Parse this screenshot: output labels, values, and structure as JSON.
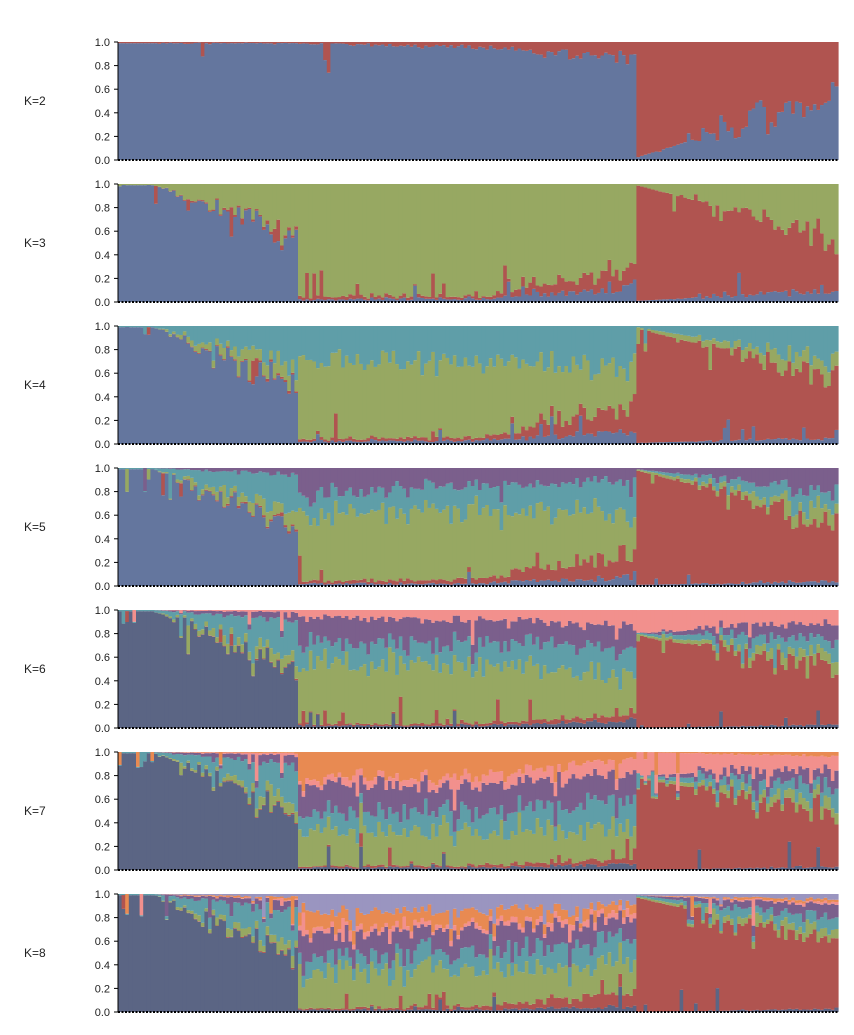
{
  "chart_data": [
    {
      "type": "stacked-bar",
      "panel_label": "K=2",
      "ylim": [
        0,
        1
      ],
      "yticks": [
        "0.0",
        "0.2",
        "0.4",
        "0.6",
        "0.8",
        "1.0"
      ],
      "n_individuals": 200,
      "cluster_colors": [
        "#64769e",
        "#b05450"
      ],
      "profile": {
        "breakpoints": [
          0.25,
          0.5,
          0.72,
          0.72,
          1.0
        ],
        "values": [
          [
            0.99,
            0.01
          ],
          [
            0.96,
            0.04
          ],
          [
            0.87,
            0.13
          ],
          [
            0.02,
            0.98
          ],
          [
            0.55,
            0.45
          ]
        ]
      }
    },
    {
      "type": "stacked-bar",
      "panel_label": "K=3",
      "ylim": [
        0,
        1
      ],
      "yticks": [
        "0.0",
        "0.2",
        "0.4",
        "0.6",
        "0.8",
        "1.0"
      ],
      "n_individuals": 200,
      "cluster_colors": [
        "#64769e",
        "#b05450",
        "#97a862"
      ],
      "profile": {
        "breakpoints": [
          0.05,
          0.25,
          0.25,
          0.5,
          0.72,
          0.72,
          1.0
        ],
        "values": [
          [
            0.99,
            0.0,
            0.01
          ],
          [
            0.55,
            0.03,
            0.42
          ],
          [
            0.02,
            0.03,
            0.95
          ],
          [
            0.03,
            0.02,
            0.95
          ],
          [
            0.12,
            0.18,
            0.7
          ],
          [
            0.01,
            0.98,
            0.01
          ],
          [
            0.1,
            0.45,
            0.45
          ]
        ]
      }
    },
    {
      "type": "stacked-bar",
      "panel_label": "K=4",
      "ylim": [
        0,
        1
      ],
      "yticks": [
        "0.0",
        "0.2",
        "0.4",
        "0.6",
        "0.8",
        "1.0"
      ],
      "n_individuals": 200,
      "cluster_colors": [
        "#64769e",
        "#b05450",
        "#97a862",
        "#5f9ea8"
      ],
      "profile": {
        "breakpoints": [
          0.05,
          0.25,
          0.25,
          0.5,
          0.72,
          0.72,
          1.0
        ],
        "values": [
          [
            0.99,
            0.0,
            0.0,
            0.01
          ],
          [
            0.5,
            0.02,
            0.15,
            0.33
          ],
          [
            0.02,
            0.02,
            0.68,
            0.28
          ],
          [
            0.03,
            0.03,
            0.62,
            0.32
          ],
          [
            0.1,
            0.2,
            0.35,
            0.35
          ],
          [
            0.01,
            0.97,
            0.01,
            0.01
          ],
          [
            0.05,
            0.5,
            0.15,
            0.3
          ]
        ]
      }
    },
    {
      "type": "stacked-bar",
      "panel_label": "K=5",
      "ylim": [
        0,
        1
      ],
      "yticks": [
        "0.0",
        "0.2",
        "0.4",
        "0.6",
        "0.8",
        "1.0"
      ],
      "n_individuals": 200,
      "cluster_colors": [
        "#64769e",
        "#b05450",
        "#97a862",
        "#5f9ea8",
        "#7b5f8c"
      ],
      "profile": {
        "breakpoints": [
          0.05,
          0.25,
          0.25,
          0.5,
          0.72,
          0.72,
          1.0
        ],
        "values": [
          [
            0.99,
            0.0,
            0.0,
            0.01,
            0.0
          ],
          [
            0.5,
            0.02,
            0.12,
            0.3,
            0.06
          ],
          [
            0.02,
            0.02,
            0.55,
            0.16,
            0.25
          ],
          [
            0.02,
            0.04,
            0.6,
            0.2,
            0.14
          ],
          [
            0.08,
            0.18,
            0.34,
            0.28,
            0.12
          ],
          [
            0.01,
            0.97,
            0.01,
            0.0,
            0.01
          ],
          [
            0.04,
            0.5,
            0.1,
            0.16,
            0.2
          ]
        ]
      }
    },
    {
      "type": "stacked-bar",
      "panel_label": "K=6",
      "ylim": [
        0,
        1
      ],
      "yticks": [
        "0.0",
        "0.2",
        "0.4",
        "0.6",
        "0.8",
        "1.0"
      ],
      "n_individuals": 200,
      "cluster_colors": [
        "#5b6584",
        "#b05450",
        "#97a862",
        "#5f9ea8",
        "#7b5f8c",
        "#f2908d"
      ],
      "profile": {
        "breakpoints": [
          0.05,
          0.25,
          0.25,
          0.5,
          0.72,
          0.72,
          1.0
        ],
        "values": [
          [
            0.99,
            0.0,
            0.0,
            0.01,
            0.0,
            0.0
          ],
          [
            0.48,
            0.01,
            0.12,
            0.3,
            0.07,
            0.02
          ],
          [
            0.02,
            0.01,
            0.5,
            0.17,
            0.24,
            0.06
          ],
          [
            0.02,
            0.02,
            0.52,
            0.18,
            0.18,
            0.08
          ],
          [
            0.06,
            0.05,
            0.3,
            0.25,
            0.2,
            0.14
          ],
          [
            0.0,
            0.78,
            0.01,
            0.01,
            0.0,
            0.2
          ],
          [
            0.03,
            0.48,
            0.1,
            0.14,
            0.15,
            0.1
          ]
        ]
      }
    },
    {
      "type": "stacked-bar",
      "panel_label": "K=7",
      "ylim": [
        0,
        1
      ],
      "yticks": [
        "0.0",
        "0.2",
        "0.4",
        "0.6",
        "0.8",
        "1.0"
      ],
      "n_individuals": 200,
      "cluster_colors": [
        "#5b6584",
        "#b05450",
        "#97a862",
        "#5f9ea8",
        "#7b5f8c",
        "#f2908d",
        "#e88a52"
      ],
      "profile": {
        "breakpoints": [
          0.05,
          0.25,
          0.25,
          0.5,
          0.72,
          0.72,
          1.0
        ],
        "values": [
          [
            0.99,
            0.0,
            0.0,
            0.01,
            0.0,
            0.0,
            0.0
          ],
          [
            0.48,
            0.01,
            0.1,
            0.3,
            0.08,
            0.02,
            0.01
          ],
          [
            0.02,
            0.01,
            0.28,
            0.14,
            0.25,
            0.05,
            0.25
          ],
          [
            0.02,
            0.02,
            0.3,
            0.16,
            0.22,
            0.08,
            0.2
          ],
          [
            0.05,
            0.05,
            0.25,
            0.25,
            0.22,
            0.12,
            0.06
          ],
          [
            0.0,
            0.78,
            0.01,
            0.01,
            0.0,
            0.2,
            0.0
          ],
          [
            0.03,
            0.46,
            0.1,
            0.14,
            0.14,
            0.09,
            0.04
          ]
        ]
      }
    },
    {
      "type": "stacked-bar",
      "panel_label": "K=8",
      "ylim": [
        0,
        1
      ],
      "yticks": [
        "0.0",
        "0.2",
        "0.4",
        "0.6",
        "0.8",
        "1.0"
      ],
      "n_individuals": 200,
      "cluster_colors": [
        "#5b6584",
        "#b05450",
        "#97a862",
        "#5f9ea8",
        "#7b5f8c",
        "#f2908d",
        "#e88a52",
        "#9a95c0"
      ],
      "profile": {
        "breakpoints": [
          0.05,
          0.25,
          0.25,
          0.5,
          0.72,
          0.72,
          1.0
        ],
        "values": [
          [
            0.99,
            0.0,
            0.0,
            0.01,
            0.0,
            0.0,
            0.0,
            0.0
          ],
          [
            0.48,
            0.01,
            0.1,
            0.28,
            0.07,
            0.01,
            0.02,
            0.03
          ],
          [
            0.02,
            0.01,
            0.3,
            0.12,
            0.2,
            0.04,
            0.15,
            0.16
          ],
          [
            0.02,
            0.03,
            0.3,
            0.15,
            0.18,
            0.04,
            0.12,
            0.16
          ],
          [
            0.05,
            0.12,
            0.25,
            0.22,
            0.16,
            0.06,
            0.06,
            0.08
          ],
          [
            0.0,
            0.97,
            0.01,
            0.01,
            0.0,
            0.0,
            0.0,
            0.01
          ],
          [
            0.03,
            0.55,
            0.08,
            0.12,
            0.12,
            0.02,
            0.03,
            0.05
          ]
        ]
      }
    }
  ]
}
